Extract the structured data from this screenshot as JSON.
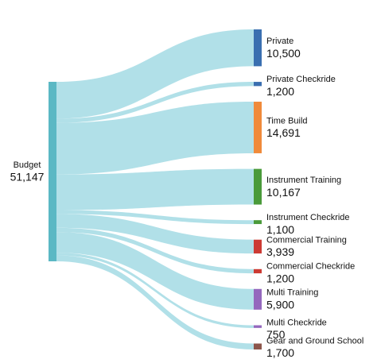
{
  "chart_data": {
    "type": "sankey",
    "source": {
      "name": "Budget",
      "value": 51147,
      "value_label": "51,147",
      "color": "#5bb8c4"
    },
    "link_color": "#a8dde6",
    "targets": [
      {
        "name": "Private",
        "value": 10500,
        "value_label": "10,500",
        "color": "#3a6fb0"
      },
      {
        "name": "Private Checkride",
        "value": 1200,
        "value_label": "1,200",
        "color": "#3a6fb0"
      },
      {
        "name": "Time Build",
        "value": 14691,
        "value_label": "14,691",
        "color": "#f08a3a"
      },
      {
        "name": "Instrument Training",
        "value": 10167,
        "value_label": "10,167",
        "color": "#4a9a3a"
      },
      {
        "name": "Instrument Checkride",
        "value": 1100,
        "value_label": "1,100",
        "color": "#4a9a3a"
      },
      {
        "name": "Commercial Training",
        "value": 3939,
        "value_label": "3,939",
        "color": "#cc3a33"
      },
      {
        "name": "Commercial Checkride",
        "value": 1200,
        "value_label": "1,200",
        "color": "#cc3a33"
      },
      {
        "name": "Multi Training",
        "value": 5900,
        "value_label": "5,900",
        "color": "#9467bd"
      },
      {
        "name": "Multi Checkride",
        "value": 750,
        "value_label": "750",
        "color": "#9467bd"
      },
      {
        "name": "Gear and Ground School",
        "value": 1700,
        "value_label": "1,700",
        "color": "#8c564b"
      }
    ]
  }
}
